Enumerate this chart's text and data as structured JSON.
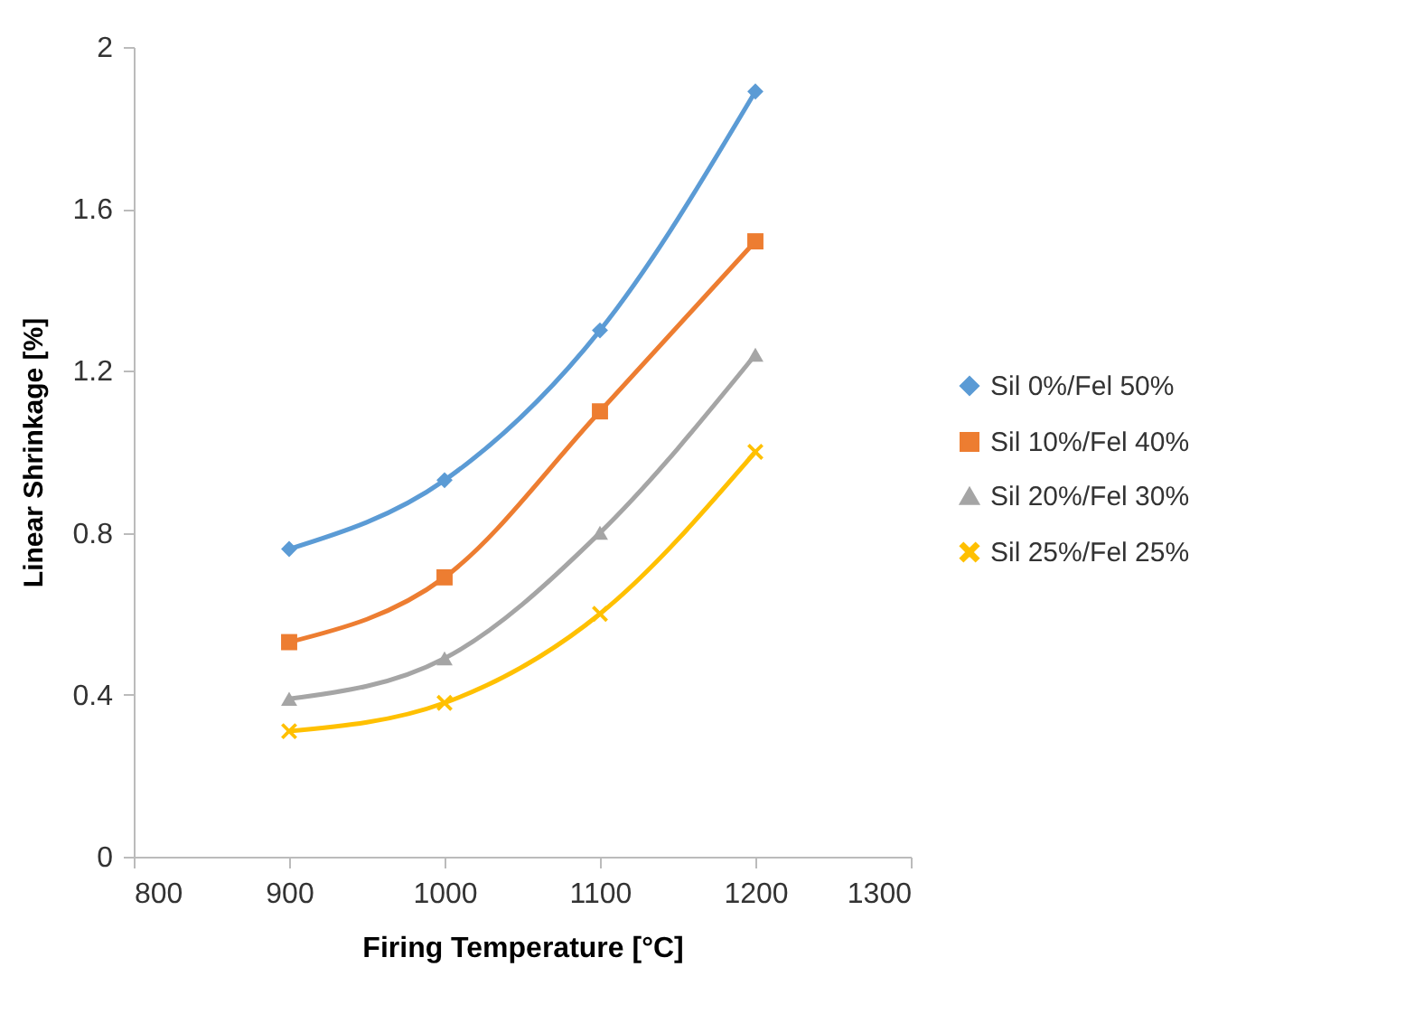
{
  "chart_data": {
    "type": "line",
    "xlabel": "Firing Temperature [°C]",
    "ylabel": "Linear Shrinkage  [%]",
    "x": [
      900,
      1000,
      1100,
      1200
    ],
    "series": [
      {
        "name": "Sil 0%/Fel 50%",
        "color": "#5b9bd5",
        "marker": "diamond",
        "values": [
          0.76,
          0.93,
          1.3,
          1.89
        ]
      },
      {
        "name": "Sil 10%/Fel 40%",
        "color": "#ed7d31",
        "marker": "square",
        "values": [
          0.53,
          0.69,
          1.1,
          1.52
        ]
      },
      {
        "name": "Sil 20%/Fel 30%",
        "color": "#a5a5a5",
        "marker": "triangle",
        "values": [
          0.39,
          0.49,
          0.8,
          1.24
        ]
      },
      {
        "name": "Sil 25%/Fel 25%",
        "color": "#ffc000",
        "marker": "cross",
        "values": [
          0.31,
          0.38,
          0.6,
          1.0
        ]
      }
    ],
    "xlim": [
      800,
      1300
    ],
    "xticks": [
      800,
      900,
      1000,
      1100,
      1200,
      1300
    ],
    "ylim": [
      0,
      2
    ],
    "yticks": [
      0,
      0.4,
      0.8,
      1.2,
      1.6,
      2
    ],
    "grid": false,
    "legend": "right",
    "line_style": "solid"
  }
}
